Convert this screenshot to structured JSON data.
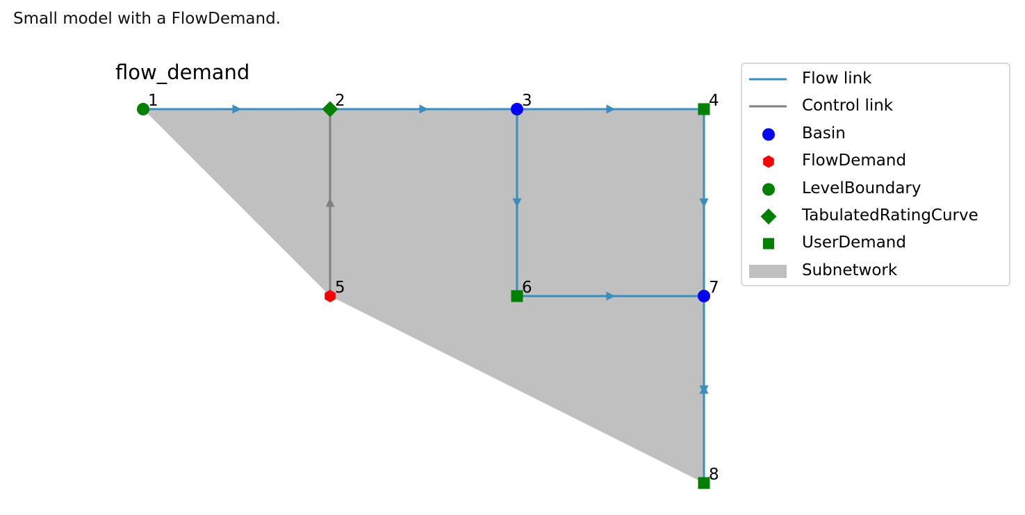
{
  "caption": "Small model with a FlowDemand.",
  "diagram": {
    "title": "flow_demand",
    "nodes": [
      {
        "id": "1",
        "type": "LevelBoundary"
      },
      {
        "id": "2",
        "type": "TabulatedRatingCurve"
      },
      {
        "id": "3",
        "type": "Basin"
      },
      {
        "id": "4",
        "type": "UserDemand"
      },
      {
        "id": "5",
        "type": "FlowDemand"
      },
      {
        "id": "6",
        "type": "UserDemand"
      },
      {
        "id": "7",
        "type": "Basin"
      },
      {
        "id": "8",
        "type": "UserDemand"
      }
    ],
    "links": [
      {
        "from": "1",
        "to": "2",
        "kind": "flow"
      },
      {
        "from": "2",
        "to": "3",
        "kind": "flow"
      },
      {
        "from": "3",
        "to": "4",
        "kind": "flow"
      },
      {
        "from": "3",
        "to": "6",
        "kind": "flow"
      },
      {
        "from": "4",
        "to": "7",
        "kind": "flow"
      },
      {
        "from": "6",
        "to": "7",
        "kind": "flow"
      },
      {
        "from": "7",
        "to": "8",
        "kind": "flow"
      },
      {
        "from": "8",
        "to": "7",
        "kind": "flow"
      },
      {
        "from": "5",
        "to": "2",
        "kind": "control"
      }
    ],
    "subnetwork_nodes": [
      "1",
      "2",
      "3",
      "4",
      "7",
      "8",
      "5"
    ]
  },
  "legend": {
    "items": [
      {
        "label": "Flow link",
        "symbol": "line",
        "color": "#3a8dbf"
      },
      {
        "label": "Control link",
        "symbol": "line",
        "color": "#808080"
      },
      {
        "label": "Basin",
        "symbol": "circle",
        "color": "#0000ff"
      },
      {
        "label": "FlowDemand",
        "symbol": "hexagon",
        "color": "#ff0000"
      },
      {
        "label": "LevelBoundary",
        "symbol": "circle",
        "color": "#008000"
      },
      {
        "label": "TabulatedRatingCurve",
        "symbol": "diamond",
        "color": "#008000"
      },
      {
        "label": "UserDemand",
        "symbol": "square",
        "color": "#008000"
      },
      {
        "label": "Subnetwork",
        "symbol": "patch",
        "color": "#c0c0c0"
      }
    ]
  },
  "colors": {
    "flow_link": "#3a8dbf",
    "control_link": "#808080",
    "subnetwork_fill": "#c0c0c0",
    "Basin": "#0000ff",
    "FlowDemand": "#ff0000",
    "LevelBoundary": "#008000",
    "TabulatedRatingCurve": "#008000",
    "UserDemand": "#008000"
  }
}
